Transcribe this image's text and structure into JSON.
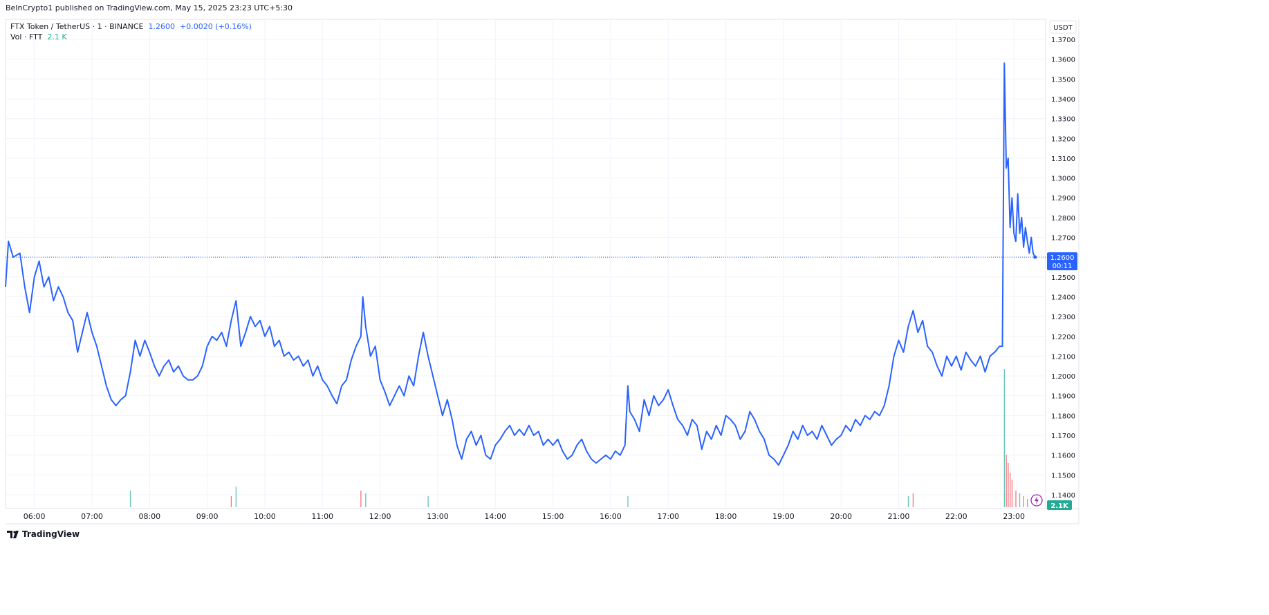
{
  "header": {
    "published": "BeInCrypto1 published on TradingView.com, May 15, 2025 23:23 UTC+5:30"
  },
  "legend": {
    "symbol": "FTX Token / TetherUS · 1 · BINANCE",
    "price": "1.2600",
    "change": "+0.0020 (+0.16%)",
    "vol_label": "Vol · FTT",
    "vol_value": "2.1 K"
  },
  "price_axis": {
    "unit": "USDT",
    "last_price": "1.2600",
    "countdown": "00:11",
    "last_vol": "2.1K"
  },
  "branding": {
    "logo": "TradingView"
  },
  "colors": {
    "line": "#2962ff",
    "grid": "#f0f3fa",
    "vol_up": "#22ab94",
    "vol_down": "#f23645",
    "last_price_bg": "#2962ff",
    "vol_badge": "#22ab94"
  },
  "chart_data": {
    "type": "line",
    "xlim": [
      "05:30",
      "23:33"
    ],
    "ylim": [
      1.135,
      1.3805
    ],
    "grid": true,
    "x_ticks": [
      "06:00",
      "07:00",
      "08:00",
      "09:00",
      "10:00",
      "11:00",
      "12:00",
      "13:00",
      "14:00",
      "15:00",
      "16:00",
      "17:00",
      "18:00",
      "19:00",
      "20:00",
      "21:00",
      "22:00",
      "23:00"
    ],
    "y_ticks": [
      "1.3700",
      "1.3600",
      "1.3500",
      "1.3400",
      "1.3300",
      "1.3200",
      "1.3100",
      "1.3000",
      "1.2900",
      "1.2800",
      "1.2700",
      "1.2600",
      "1.2500",
      "1.2400",
      "1.2300",
      "1.2200",
      "1.2100",
      "1.2000",
      "1.1900",
      "1.1800",
      "1.1700",
      "1.1600",
      "1.1500",
      "1.1400"
    ],
    "series": [
      {
        "values": [
          [
            "05:30",
            1.245
          ],
          [
            "05:33",
            1.268
          ],
          [
            "05:38",
            1.26
          ],
          [
            "05:45",
            1.262
          ],
          [
            "05:50",
            1.245
          ],
          [
            "05:55",
            1.232
          ],
          [
            "06:00",
            1.25
          ],
          [
            "06:05",
            1.258
          ],
          [
            "06:10",
            1.245
          ],
          [
            "06:15",
            1.25
          ],
          [
            "06:20",
            1.238
          ],
          [
            "06:25",
            1.245
          ],
          [
            "06:30",
            1.24
          ],
          [
            "06:35",
            1.232
          ],
          [
            "06:40",
            1.228
          ],
          [
            "06:45",
            1.212
          ],
          [
            "06:50",
            1.222
          ],
          [
            "06:55",
            1.232
          ],
          [
            "07:00",
            1.222
          ],
          [
            "07:05",
            1.215
          ],
          [
            "07:10",
            1.205
          ],
          [
            "07:15",
            1.195
          ],
          [
            "07:20",
            1.188
          ],
          [
            "07:25",
            1.185
          ],
          [
            "07:30",
            1.188
          ],
          [
            "07:35",
            1.19
          ],
          [
            "07:40",
            1.202
          ],
          [
            "07:45",
            1.218
          ],
          [
            "07:50",
            1.21
          ],
          [
            "07:55",
            1.218
          ],
          [
            "08:00",
            1.212
          ],
          [
            "08:05",
            1.205
          ],
          [
            "08:10",
            1.2
          ],
          [
            "08:15",
            1.205
          ],
          [
            "08:20",
            1.208
          ],
          [
            "08:25",
            1.202
          ],
          [
            "08:30",
            1.205
          ],
          [
            "08:35",
            1.2
          ],
          [
            "08:40",
            1.198
          ],
          [
            "08:45",
            1.198
          ],
          [
            "08:50",
            1.2
          ],
          [
            "08:55",
            1.205
          ],
          [
            "09:00",
            1.215
          ],
          [
            "09:05",
            1.22
          ],
          [
            "09:10",
            1.218
          ],
          [
            "09:15",
            1.222
          ],
          [
            "09:20",
            1.215
          ],
          [
            "09:25",
            1.228
          ],
          [
            "09:30",
            1.238
          ],
          [
            "09:35",
            1.215
          ],
          [
            "09:40",
            1.222
          ],
          [
            "09:45",
            1.23
          ],
          [
            "09:50",
            1.225
          ],
          [
            "09:55",
            1.228
          ],
          [
            "10:00",
            1.22
          ],
          [
            "10:05",
            1.225
          ],
          [
            "10:10",
            1.215
          ],
          [
            "10:15",
            1.218
          ],
          [
            "10:20",
            1.21
          ],
          [
            "10:25",
            1.212
          ],
          [
            "10:30",
            1.208
          ],
          [
            "10:35",
            1.21
          ],
          [
            "10:40",
            1.205
          ],
          [
            "10:45",
            1.208
          ],
          [
            "10:50",
            1.2
          ],
          [
            "10:55",
            1.205
          ],
          [
            "11:00",
            1.198
          ],
          [
            "11:05",
            1.195
          ],
          [
            "11:10",
            1.19
          ],
          [
            "11:15",
            1.186
          ],
          [
            "11:20",
            1.195
          ],
          [
            "11:25",
            1.198
          ],
          [
            "11:30",
            1.208
          ],
          [
            "11:35",
            1.215
          ],
          [
            "11:40",
            1.22
          ],
          [
            "11:42",
            1.24
          ],
          [
            "11:45",
            1.225
          ],
          [
            "11:50",
            1.21
          ],
          [
            "11:55",
            1.215
          ],
          [
            "12:00",
            1.198
          ],
          [
            "12:05",
            1.192
          ],
          [
            "12:10",
            1.185
          ],
          [
            "12:15",
            1.19
          ],
          [
            "12:20",
            1.195
          ],
          [
            "12:25",
            1.19
          ],
          [
            "12:30",
            1.2
          ],
          [
            "12:35",
            1.195
          ],
          [
            "12:40",
            1.21
          ],
          [
            "12:45",
            1.222
          ],
          [
            "12:50",
            1.21
          ],
          [
            "12:55",
            1.2
          ],
          [
            "13:00",
            1.19
          ],
          [
            "13:05",
            1.18
          ],
          [
            "13:10",
            1.188
          ],
          [
            "13:15",
            1.178
          ],
          [
            "13:20",
            1.165
          ],
          [
            "13:25",
            1.158
          ],
          [
            "13:30",
            1.168
          ],
          [
            "13:35",
            1.172
          ],
          [
            "13:40",
            1.165
          ],
          [
            "13:45",
            1.17
          ],
          [
            "13:50",
            1.16
          ],
          [
            "13:55",
            1.158
          ],
          [
            "14:00",
            1.165
          ],
          [
            "14:05",
            1.168
          ],
          [
            "14:10",
            1.172
          ],
          [
            "14:15",
            1.175
          ],
          [
            "14:20",
            1.17
          ],
          [
            "14:25",
            1.173
          ],
          [
            "14:30",
            1.17
          ],
          [
            "14:35",
            1.175
          ],
          [
            "14:40",
            1.17
          ],
          [
            "14:45",
            1.172
          ],
          [
            "14:50",
            1.165
          ],
          [
            "14:55",
            1.168
          ],
          [
            "15:00",
            1.165
          ],
          [
            "15:05",
            1.168
          ],
          [
            "15:10",
            1.162
          ],
          [
            "15:15",
            1.158
          ],
          [
            "15:20",
            1.16
          ],
          [
            "15:25",
            1.165
          ],
          [
            "15:30",
            1.168
          ],
          [
            "15:35",
            1.162
          ],
          [
            "15:40",
            1.158
          ],
          [
            "15:45",
            1.156
          ],
          [
            "15:50",
            1.158
          ],
          [
            "15:55",
            1.16
          ],
          [
            "16:00",
            1.158
          ],
          [
            "16:05",
            1.162
          ],
          [
            "16:10",
            1.16
          ],
          [
            "16:15",
            1.165
          ],
          [
            "16:18",
            1.195
          ],
          [
            "16:20",
            1.182
          ],
          [
            "16:25",
            1.178
          ],
          [
            "16:30",
            1.172
          ],
          [
            "16:35",
            1.188
          ],
          [
            "16:40",
            1.18
          ],
          [
            "16:45",
            1.19
          ],
          [
            "16:50",
            1.185
          ],
          [
            "16:55",
            1.188
          ],
          [
            "17:00",
            1.193
          ],
          [
            "17:05",
            1.185
          ],
          [
            "17:10",
            1.178
          ],
          [
            "17:15",
            1.175
          ],
          [
            "17:20",
            1.17
          ],
          [
            "17:25",
            1.178
          ],
          [
            "17:30",
            1.175
          ],
          [
            "17:35",
            1.163
          ],
          [
            "17:40",
            1.172
          ],
          [
            "17:45",
            1.168
          ],
          [
            "17:50",
            1.175
          ],
          [
            "17:55",
            1.17
          ],
          [
            "18:00",
            1.18
          ],
          [
            "18:05",
            1.178
          ],
          [
            "18:10",
            1.175
          ],
          [
            "18:15",
            1.168
          ],
          [
            "18:20",
            1.172
          ],
          [
            "18:25",
            1.182
          ],
          [
            "18:30",
            1.178
          ],
          [
            "18:35",
            1.172
          ],
          [
            "18:40",
            1.168
          ],
          [
            "18:45",
            1.16
          ],
          [
            "18:50",
            1.158
          ],
          [
            "18:55",
            1.155
          ],
          [
            "19:00",
            1.16
          ],
          [
            "19:05",
            1.165
          ],
          [
            "19:10",
            1.172
          ],
          [
            "19:15",
            1.168
          ],
          [
            "19:20",
            1.175
          ],
          [
            "19:25",
            1.17
          ],
          [
            "19:30",
            1.172
          ],
          [
            "19:35",
            1.168
          ],
          [
            "19:40",
            1.175
          ],
          [
            "19:45",
            1.17
          ],
          [
            "19:50",
            1.165
          ],
          [
            "19:55",
            1.168
          ],
          [
            "20:00",
            1.17
          ],
          [
            "20:05",
            1.175
          ],
          [
            "20:10",
            1.172
          ],
          [
            "20:15",
            1.178
          ],
          [
            "20:20",
            1.175
          ],
          [
            "20:25",
            1.18
          ],
          [
            "20:30",
            1.178
          ],
          [
            "20:35",
            1.182
          ],
          [
            "20:40",
            1.18
          ],
          [
            "20:45",
            1.185
          ],
          [
            "20:50",
            1.195
          ],
          [
            "20:55",
            1.21
          ],
          [
            "21:00",
            1.218
          ],
          [
            "21:05",
            1.212
          ],
          [
            "21:10",
            1.225
          ],
          [
            "21:15",
            1.233
          ],
          [
            "21:20",
            1.222
          ],
          [
            "21:25",
            1.228
          ],
          [
            "21:30",
            1.215
          ],
          [
            "21:35",
            1.212
          ],
          [
            "21:40",
            1.205
          ],
          [
            "21:45",
            1.2
          ],
          [
            "21:50",
            1.21
          ],
          [
            "21:55",
            1.205
          ],
          [
            "22:00",
            1.21
          ],
          [
            "22:05",
            1.203
          ],
          [
            "22:10",
            1.212
          ],
          [
            "22:15",
            1.208
          ],
          [
            "22:20",
            1.205
          ],
          [
            "22:25",
            1.21
          ],
          [
            "22:30",
            1.202
          ],
          [
            "22:35",
            1.21
          ],
          [
            "22:40",
            1.212
          ],
          [
            "22:45",
            1.215
          ],
          [
            "22:48",
            1.215
          ],
          [
            "22:50",
            1.358
          ],
          [
            "22:52",
            1.305
          ],
          [
            "22:54",
            1.31
          ],
          [
            "22:56",
            1.275
          ],
          [
            "22:58",
            1.29
          ],
          [
            "23:00",
            1.272
          ],
          [
            "23:02",
            1.268
          ],
          [
            "23:04",
            1.292
          ],
          [
            "23:06",
            1.272
          ],
          [
            "23:08",
            1.28
          ],
          [
            "23:10",
            1.265
          ],
          [
            "23:12",
            1.275
          ],
          [
            "23:14",
            1.268
          ],
          [
            "23:16",
            1.262
          ],
          [
            "23:18",
            1.27
          ],
          [
            "23:20",
            1.262
          ],
          [
            "23:22",
            1.26
          ]
        ]
      }
    ],
    "volume": [
      [
        "07:40",
        0.12,
        "up"
      ],
      [
        "09:25",
        0.08,
        "down"
      ],
      [
        "09:30",
        0.15,
        "up"
      ],
      [
        "11:40",
        0.12,
        "down"
      ],
      [
        "11:45",
        0.1,
        "up"
      ],
      [
        "12:50",
        0.08,
        "up"
      ],
      [
        "16:18",
        0.08,
        "up"
      ],
      [
        "21:10",
        0.08,
        "up"
      ],
      [
        "21:15",
        0.1,
        "down"
      ],
      [
        "22:50",
        1.0,
        "up"
      ],
      [
        "22:52",
        0.38,
        "down"
      ],
      [
        "22:54",
        0.32,
        "down"
      ],
      [
        "22:56",
        0.25,
        "down"
      ],
      [
        "22:58",
        0.2,
        "down"
      ],
      [
        "23:02",
        0.12,
        "down"
      ],
      [
        "23:06",
        0.1,
        "up"
      ],
      [
        "23:10",
        0.08,
        "down"
      ],
      [
        "23:14",
        0.06,
        "up"
      ]
    ]
  }
}
